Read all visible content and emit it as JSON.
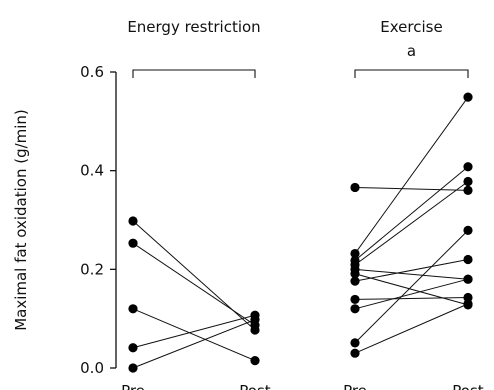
{
  "chart_data": {
    "type": "scatter",
    "ylabel": "Maximal fat oxidation (g/min)",
    "ylim": [
      0,
      0.6
    ],
    "yticks": [
      "0.0",
      "0.2",
      "0.4",
      "0.6"
    ],
    "colors": {
      "points": "#000000",
      "lines": "#111111"
    },
    "groups": [
      {
        "name": "Energy restriction",
        "annotation": "",
        "conditions": [
          "Pre",
          "Post"
        ],
        "pairs": [
          [
            0.298,
            0.077
          ],
          [
            0.253,
            0.087
          ],
          [
            0.12,
            0.015
          ],
          [
            0.041,
            0.107
          ],
          [
            0.0,
            0.098
          ]
        ]
      },
      {
        "name": "Exercise",
        "annotation": "a",
        "conditions": [
          "Pre",
          "Post"
        ],
        "pairs": [
          [
            0.366,
            0.36
          ],
          [
            0.232,
            0.549
          ],
          [
            0.218,
            0.408
          ],
          [
            0.209,
            0.378
          ],
          [
            0.2,
            0.18
          ],
          [
            0.191,
            0.128
          ],
          [
            0.176,
            0.22
          ],
          [
            0.139,
            0.143
          ],
          [
            0.12,
            0.18
          ],
          [
            0.051,
            0.279
          ],
          [
            0.03,
            0.13
          ]
        ]
      }
    ]
  }
}
